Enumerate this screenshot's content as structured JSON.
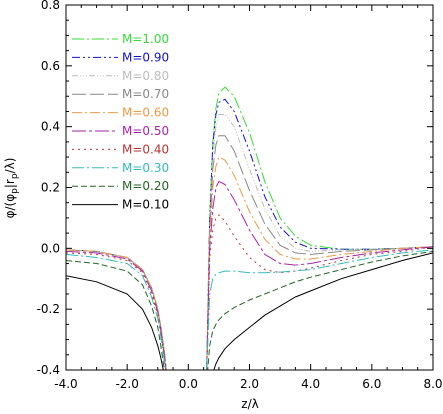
{
  "chart_data": {
    "type": "line",
    "title": "",
    "xlabel": "z/λ",
    "ylabel": "φ/(φp|rp/λ)",
    "ylabel_main": "φ/(φ",
    "ylabel_sub1": "p",
    "ylabel_mid": "|r",
    "ylabel_sub2": "p",
    "ylabel_end": "/λ)",
    "xlim": [
      -4.0,
      8.0
    ],
    "ylim": [
      -0.4,
      0.8
    ],
    "xticks": [
      -4.0,
      -2.0,
      0.0,
      2.0,
      4.0,
      6.0,
      8.0
    ],
    "xtick_labels": [
      "-4.0",
      "-2.0",
      "0.0",
      "2.0",
      "4.0",
      "6.0",
      "8.0"
    ],
    "yticks": [
      -0.4,
      -0.2,
      0.0,
      0.2,
      0.4,
      0.6,
      0.8
    ],
    "ytick_labels": [
      "-0.4",
      "-0.2",
      "0.0",
      "0.2",
      "0.4",
      "0.6",
      "0.8"
    ],
    "grid": false,
    "legend_position": "top-left",
    "series": [
      {
        "name": "M=1.00",
        "color": "#33dd33",
        "dash": "12,3,2,3",
        "x": [
          -4.0,
          -3.0,
          -2.0,
          -1.5,
          -1.2,
          -1.0,
          -0.9,
          -0.8,
          -0.7,
          0.6,
          0.7,
          0.8,
          0.9,
          1.0,
          1.2,
          1.5,
          2.0,
          2.5,
          3.0,
          3.5,
          4.0,
          5.0,
          6.0,
          7.0,
          8.0
        ],
        "y": [
          -0.005,
          -0.01,
          -0.03,
          -0.07,
          -0.13,
          -0.2,
          -0.26,
          -0.33,
          -0.42,
          -0.4,
          0.1,
          0.35,
          0.46,
          0.51,
          0.53,
          0.5,
          0.38,
          0.22,
          0.1,
          0.04,
          0.01,
          -0.003,
          -0.003,
          0.0,
          0.005
        ]
      },
      {
        "name": "M=0.90",
        "color": "#1111cc",
        "dash": "8,3,2,3,2,3",
        "x": [
          -4.0,
          -3.0,
          -2.0,
          -1.5,
          -1.2,
          -1.0,
          -0.9,
          -0.8,
          -0.7,
          0.6,
          0.7,
          0.8,
          0.9,
          1.0,
          1.2,
          1.5,
          2.0,
          2.5,
          3.0,
          3.5,
          4.0,
          5.0,
          6.0,
          7.0,
          8.0
        ],
        "y": [
          -0.005,
          -0.01,
          -0.03,
          -0.07,
          -0.13,
          -0.2,
          -0.26,
          -0.33,
          -0.42,
          -0.4,
          0.1,
          0.34,
          0.44,
          0.48,
          0.49,
          0.45,
          0.32,
          0.17,
          0.07,
          0.02,
          0.0,
          -0.003,
          -0.003,
          0.0,
          0.005
        ]
      },
      {
        "name": "M=0.80",
        "color": "#bbbbbb",
        "dash": "6,2,1,2,1,2,1,2",
        "x": [
          -4.0,
          -3.0,
          -2.0,
          -1.5,
          -1.2,
          -1.0,
          -0.9,
          -0.8,
          -0.7,
          0.6,
          0.7,
          0.8,
          0.9,
          1.0,
          1.2,
          1.5,
          2.0,
          2.5,
          3.0,
          3.5,
          4.0,
          5.0,
          6.0,
          7.0,
          8.0
        ],
        "y": [
          -0.005,
          -0.01,
          -0.03,
          -0.07,
          -0.13,
          -0.2,
          -0.26,
          -0.33,
          -0.42,
          -0.4,
          0.08,
          0.3,
          0.4,
          0.44,
          0.44,
          0.4,
          0.26,
          0.13,
          0.04,
          0.0,
          -0.01,
          -0.005,
          -0.003,
          0.0,
          0.005
        ]
      },
      {
        "name": "M=0.70",
        "color": "#888888",
        "dash": "14,4",
        "x": [
          -4.0,
          -3.0,
          -2.0,
          -1.5,
          -1.2,
          -1.0,
          -0.9,
          -0.8,
          -0.7,
          0.6,
          0.7,
          0.8,
          0.9,
          1.0,
          1.2,
          1.5,
          2.0,
          2.5,
          3.0,
          3.5,
          4.0,
          5.0,
          6.0,
          7.0,
          8.0
        ],
        "y": [
          -0.005,
          -0.01,
          -0.03,
          -0.07,
          -0.13,
          -0.2,
          -0.26,
          -0.33,
          -0.42,
          -0.4,
          0.05,
          0.26,
          0.34,
          0.37,
          0.37,
          0.32,
          0.19,
          0.08,
          0.01,
          -0.015,
          -0.02,
          -0.01,
          -0.005,
          0.0,
          0.005
        ]
      },
      {
        "name": "M=0.60",
        "color": "#ee9944",
        "dash": "10,3,2,3",
        "x": [
          -4.0,
          -3.0,
          -2.0,
          -1.5,
          -1.2,
          -1.0,
          -0.9,
          -0.8,
          -0.7,
          0.6,
          0.7,
          0.8,
          0.9,
          1.0,
          1.2,
          1.5,
          2.0,
          2.5,
          3.0,
          3.5,
          4.0,
          5.0,
          6.0,
          7.0,
          8.0
        ],
        "y": [
          -0.005,
          -0.01,
          -0.03,
          -0.07,
          -0.13,
          -0.2,
          -0.26,
          -0.33,
          -0.42,
          -0.4,
          0.02,
          0.2,
          0.27,
          0.3,
          0.29,
          0.24,
          0.12,
          0.03,
          -0.02,
          -0.035,
          -0.035,
          -0.02,
          -0.01,
          0.0,
          0.005
        ]
      },
      {
        "name": "M=0.50",
        "color": "#aa22aa",
        "dash": "14,3,3,3",
        "x": [
          -4.0,
          -3.0,
          -2.0,
          -1.5,
          -1.2,
          -1.0,
          -0.9,
          -0.8,
          -0.7,
          0.6,
          0.7,
          0.8,
          0.9,
          1.0,
          1.2,
          1.5,
          2.0,
          2.5,
          3.0,
          3.5,
          4.0,
          5.0,
          6.0,
          7.0,
          8.0
        ],
        "y": [
          -0.01,
          -0.015,
          -0.035,
          -0.075,
          -0.14,
          -0.21,
          -0.27,
          -0.34,
          -0.43,
          -0.4,
          0.0,
          0.13,
          0.2,
          0.22,
          0.21,
          0.16,
          0.06,
          -0.02,
          -0.05,
          -0.055,
          -0.05,
          -0.03,
          -0.015,
          -0.005,
          0.005
        ]
      },
      {
        "name": "M=0.40",
        "color": "#bb3333",
        "dash": "2,4",
        "x": [
          -4.0,
          -3.0,
          -2.0,
          -1.5,
          -1.2,
          -1.0,
          -0.9,
          -0.8,
          -0.7,
          0.6,
          0.7,
          0.8,
          0.9,
          1.0,
          1.2,
          1.5,
          2.0,
          2.5,
          3.0,
          3.5,
          4.0,
          5.0,
          6.0,
          7.0,
          8.0
        ],
        "y": [
          -0.015,
          -0.02,
          -0.04,
          -0.08,
          -0.15,
          -0.22,
          -0.28,
          -0.35,
          -0.44,
          -0.4,
          -0.03,
          0.06,
          0.1,
          0.11,
          0.09,
          0.04,
          -0.03,
          -0.07,
          -0.08,
          -0.075,
          -0.065,
          -0.04,
          -0.02,
          -0.01,
          0.005
        ]
      },
      {
        "name": "M=0.30",
        "color": "#33bbbb",
        "dash": "12,3,2,3",
        "x": [
          -4.0,
          -3.0,
          -2.0,
          -1.5,
          -1.2,
          -1.0,
          -0.9,
          -0.8,
          -0.7,
          0.6,
          0.7,
          0.8,
          0.9,
          1.0,
          1.2,
          1.5,
          2.0,
          2.5,
          3.0,
          3.5,
          4.0,
          5.0,
          6.0,
          7.0,
          8.0
        ],
        "y": [
          -0.02,
          -0.03,
          -0.05,
          -0.09,
          -0.16,
          -0.23,
          -0.29,
          -0.36,
          -0.45,
          -0.4,
          -0.15,
          -0.1,
          -0.085,
          -0.08,
          -0.075,
          -0.075,
          -0.08,
          -0.08,
          -0.078,
          -0.074,
          -0.07,
          -0.05,
          -0.03,
          -0.015,
          -0.005
        ]
      },
      {
        "name": "M=0.20",
        "color": "#226622",
        "dash": "6,3",
        "x": [
          -4.0,
          -3.0,
          -2.0,
          -1.5,
          -1.2,
          -1.0,
          -0.9,
          -0.8,
          -0.7,
          0.6,
          0.7,
          0.8,
          0.9,
          1.0,
          1.2,
          1.5,
          2.0,
          2.5,
          3.0,
          3.5,
          4.0,
          5.0,
          6.0,
          7.0,
          8.0
        ],
        "y": [
          -0.04,
          -0.05,
          -0.075,
          -0.12,
          -0.19,
          -0.26,
          -0.32,
          -0.39,
          -0.46,
          -0.44,
          -0.32,
          -0.27,
          -0.25,
          -0.235,
          -0.215,
          -0.195,
          -0.17,
          -0.15,
          -0.13,
          -0.11,
          -0.095,
          -0.07,
          -0.045,
          -0.025,
          -0.01
        ]
      },
      {
        "name": "M=0.10",
        "color": "#000000",
        "dash": "",
        "x": [
          -4.0,
          -3.0,
          -2.0,
          -1.5,
          -1.2,
          -1.0,
          -0.9,
          -0.8,
          -0.7,
          0.7,
          0.8,
          0.9,
          1.0,
          1.2,
          1.5,
          2.0,
          2.5,
          3.0,
          3.5,
          4.0,
          5.0,
          6.0,
          7.0,
          8.0
        ],
        "y": [
          -0.09,
          -0.11,
          -0.15,
          -0.2,
          -0.26,
          -0.32,
          -0.36,
          -0.41,
          -0.47,
          -0.46,
          -0.41,
          -0.38,
          -0.36,
          -0.33,
          -0.3,
          -0.26,
          -0.22,
          -0.19,
          -0.16,
          -0.14,
          -0.1,
          -0.07,
          -0.04,
          -0.015
        ]
      }
    ]
  }
}
